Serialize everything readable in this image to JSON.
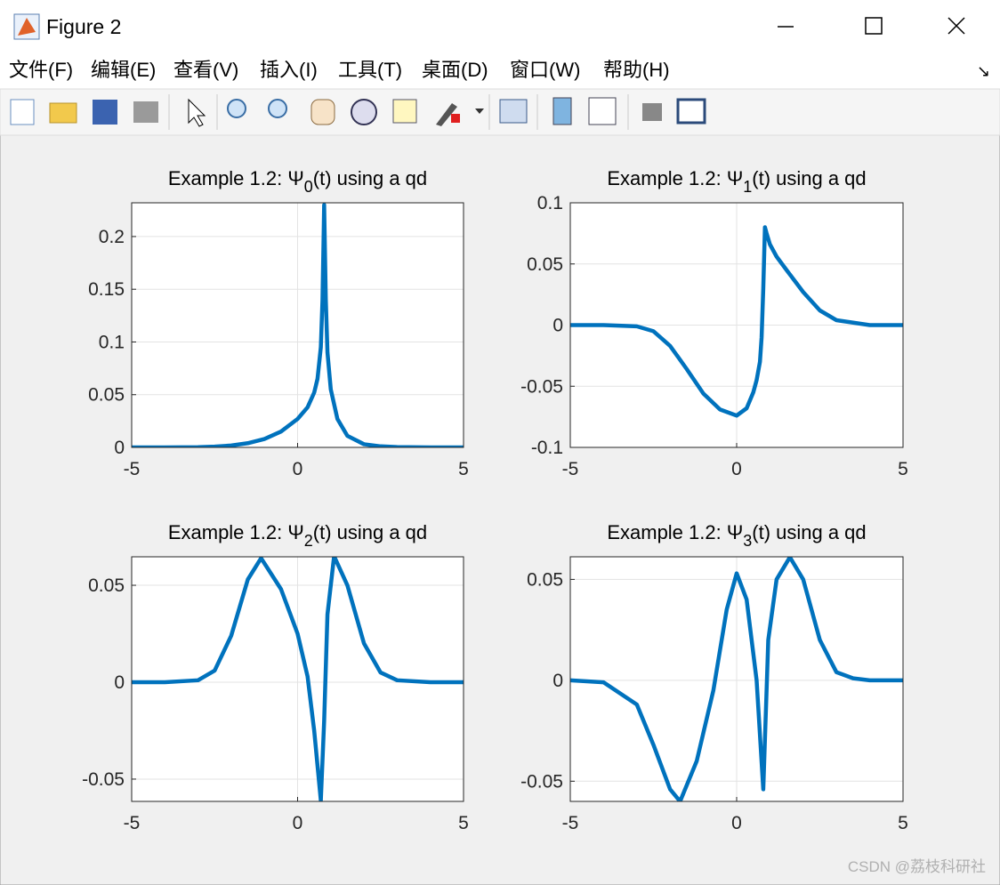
{
  "window": {
    "title": "Figure 2",
    "menu": [
      "文件(F)",
      "编辑(E)",
      "查看(V)",
      "插入(I)",
      "工具(T)",
      "桌面(D)",
      "窗口(W)",
      "帮助(H)"
    ],
    "watermark": "CSDN @荔枝科研社"
  },
  "chart_data": [
    {
      "type": "line",
      "title": {
        "prefix": "Example 1.2: Ψ",
        "subscript": "0",
        "suffix": "(t) using a qd"
      },
      "x": [
        -5,
        -4,
        -3,
        -2.5,
        -2,
        -1.5,
        -1,
        -0.5,
        0,
        0.3,
        0.5,
        0.6,
        0.7,
        0.75,
        0.8,
        0.85,
        0.9,
        1.0,
        1.2,
        1.5,
        2,
        2.5,
        3,
        4,
        5
      ],
      "values": [
        0,
        0,
        0.0002,
        0.0007,
        0.0018,
        0.004,
        0.008,
        0.015,
        0.027,
        0.038,
        0.052,
        0.065,
        0.095,
        0.14,
        0.23,
        0.14,
        0.09,
        0.055,
        0.027,
        0.011,
        0.003,
        0.001,
        0.0003,
        0,
        0
      ],
      "color": "#0072bd",
      "xlim": [
        -5,
        5
      ],
      "ylim": [
        0,
        0.232
      ],
      "xticks": [
        -5,
        0,
        5
      ],
      "yticks": [
        0,
        0.05,
        0.1,
        0.15,
        0.2
      ],
      "grid": true
    },
    {
      "type": "line",
      "title": {
        "prefix": "Example 1.2: Ψ",
        "subscript": "1",
        "suffix": "(t) using a qd"
      },
      "x": [
        -5,
        -4,
        -3,
        -2.5,
        -2,
        -1.5,
        -1,
        -0.5,
        0,
        0.3,
        0.5,
        0.6,
        0.7,
        0.75,
        0.8,
        0.85,
        0.9,
        1.0,
        1.2,
        1.5,
        2,
        2.5,
        3,
        4,
        5
      ],
      "values": [
        0,
        0,
        -0.001,
        -0.005,
        -0.017,
        -0.036,
        -0.056,
        -0.069,
        -0.074,
        -0.068,
        -0.055,
        -0.045,
        -0.03,
        -0.01,
        0.03,
        0.08,
        0.075,
        0.066,
        0.056,
        0.045,
        0.027,
        0.012,
        0.004,
        0,
        0
      ],
      "color": "#0072bd",
      "xlim": [
        -5,
        5
      ],
      "ylim": [
        -0.1,
        0.1
      ],
      "xticks": [
        -5,
        0,
        5
      ],
      "yticks": [
        -0.1,
        -0.05,
        0,
        0.05,
        0.1
      ],
      "grid": true
    },
    {
      "type": "line",
      "title": {
        "prefix": "Example 1.2: Ψ",
        "subscript": "2",
        "suffix": "(t) using a qd"
      },
      "x": [
        -5,
        -4,
        -3,
        -2.5,
        -2,
        -1.5,
        -1.1,
        -0.5,
        0,
        0.3,
        0.5,
        0.7,
        0.8,
        0.9,
        1.1,
        1.5,
        2,
        2.5,
        3,
        4,
        5
      ],
      "values": [
        0,
        0,
        0.001,
        0.006,
        0.024,
        0.053,
        0.064,
        0.048,
        0.025,
        0.003,
        -0.025,
        -0.061,
        -0.02,
        0.035,
        0.065,
        0.05,
        0.02,
        0.005,
        0.001,
        0,
        0
      ],
      "color": "#0072bd",
      "xlim": [
        -5,
        5
      ],
      "ylim": [
        -0.0615,
        0.0647
      ],
      "xticks": [
        -5,
        0,
        5
      ],
      "yticks": [
        -0.05,
        0,
        0.05
      ],
      "grid": true
    },
    {
      "type": "line",
      "title": {
        "prefix": "Example 1.2: Ψ",
        "subscript": "3",
        "suffix": "(t) using a qd"
      },
      "x": [
        -5,
        -4,
        -3,
        -2.5,
        -2,
        -1.7,
        -1.2,
        -0.7,
        -0.3,
        0,
        0.3,
        0.6,
        0.8,
        0.95,
        1.2,
        1.6,
        2,
        2.5,
        3,
        3.5,
        4,
        5
      ],
      "values": [
        0,
        -0.001,
        -0.012,
        -0.032,
        -0.054,
        -0.06,
        -0.04,
        -0.005,
        0.035,
        0.053,
        0.04,
        0,
        -0.054,
        0.02,
        0.05,
        0.061,
        0.05,
        0.02,
        0.004,
        0.001,
        0,
        0
      ],
      "color": "#0072bd",
      "xlim": [
        -5,
        5
      ],
      "ylim": [
        -0.06,
        0.0612
      ],
      "xticks": [
        -5,
        0,
        5
      ],
      "yticks": [
        -0.05,
        0,
        0.05
      ],
      "grid": true
    }
  ]
}
